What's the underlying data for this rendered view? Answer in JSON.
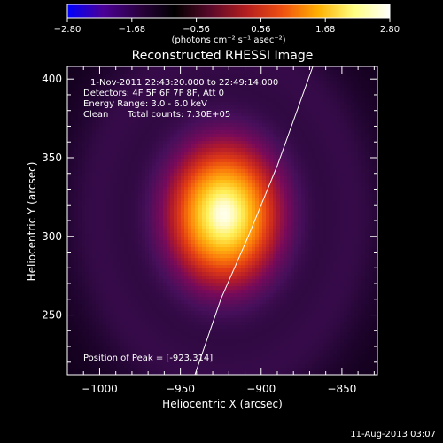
{
  "chart_data": {
    "type": "heatmap",
    "title": "Reconstructed RHESSI Image",
    "xlabel": "Heliocentric X (arcsec)",
    "ylabel": "Heliocentric Y (arcsec)",
    "xlim": [
      -1020,
      -828
    ],
    "ylim": [
      212,
      408
    ],
    "x_ticks": [
      {
        "value": -1000,
        "label": "−1000"
      },
      {
        "value": -950,
        "label": "−950"
      },
      {
        "value": -900,
        "label": "−900"
      },
      {
        "value": -850,
        "label": "−850"
      }
    ],
    "y_ticks": [
      {
        "value": 250,
        "label": "250"
      },
      {
        "value": 300,
        "label": "300"
      },
      {
        "value": 350,
        "label": "350"
      },
      {
        "value": 400,
        "label": "400"
      }
    ],
    "colorbar": {
      "min": -2.8,
      "max": 2.8,
      "ticks": [
        {
          "value": -2.8,
          "label": "−2.80"
        },
        {
          "value": -1.68,
          "label": "−1.68"
        },
        {
          "value": -0.56,
          "label": "−0.56"
        },
        {
          "value": 0.56,
          "label": "0.56"
        },
        {
          "value": 1.68,
          "label": "1.68"
        },
        {
          "value": 2.8,
          "label": "2.80"
        }
      ],
      "unit_label": "(photons cm⁻² s⁻¹ asec⁻²)",
      "colors": [
        "#0000ff",
        "#4b0096",
        "#2b0040",
        "#000000",
        "#5a0a2a",
        "#b41e1e",
        "#f05010",
        "#ffb000",
        "#ffff80",
        "#ffffff"
      ]
    },
    "annotations": {
      "time_range": "1-Nov-2011 22:43:20.000 to 22:49:14.000",
      "detectors": "Detectors: 4F 5F 6F 7F 8F, Att 0",
      "energy": "Energy Range: 3.0 - 6.0 keV",
      "algorithm": "Clean",
      "counts": "Total counts: 7.30E+05",
      "peak": "Position of Peak = [-923,314]"
    },
    "peak": {
      "x": -923,
      "y": 314
    },
    "source": {
      "sigma_x": 26,
      "sigma_y": 34,
      "peak_value": 2.8
    },
    "limb_curve": [
      {
        "x": -941,
        "y": 212
      },
      {
        "x": -925,
        "y": 260
      },
      {
        "x": -908,
        "y": 300
      },
      {
        "x": -890,
        "y": 345
      },
      {
        "x": -876,
        "y": 385
      },
      {
        "x": -868,
        "y": 408
      }
    ]
  },
  "footer": {
    "timestamp": "11-Aug-2013 03:07"
  }
}
